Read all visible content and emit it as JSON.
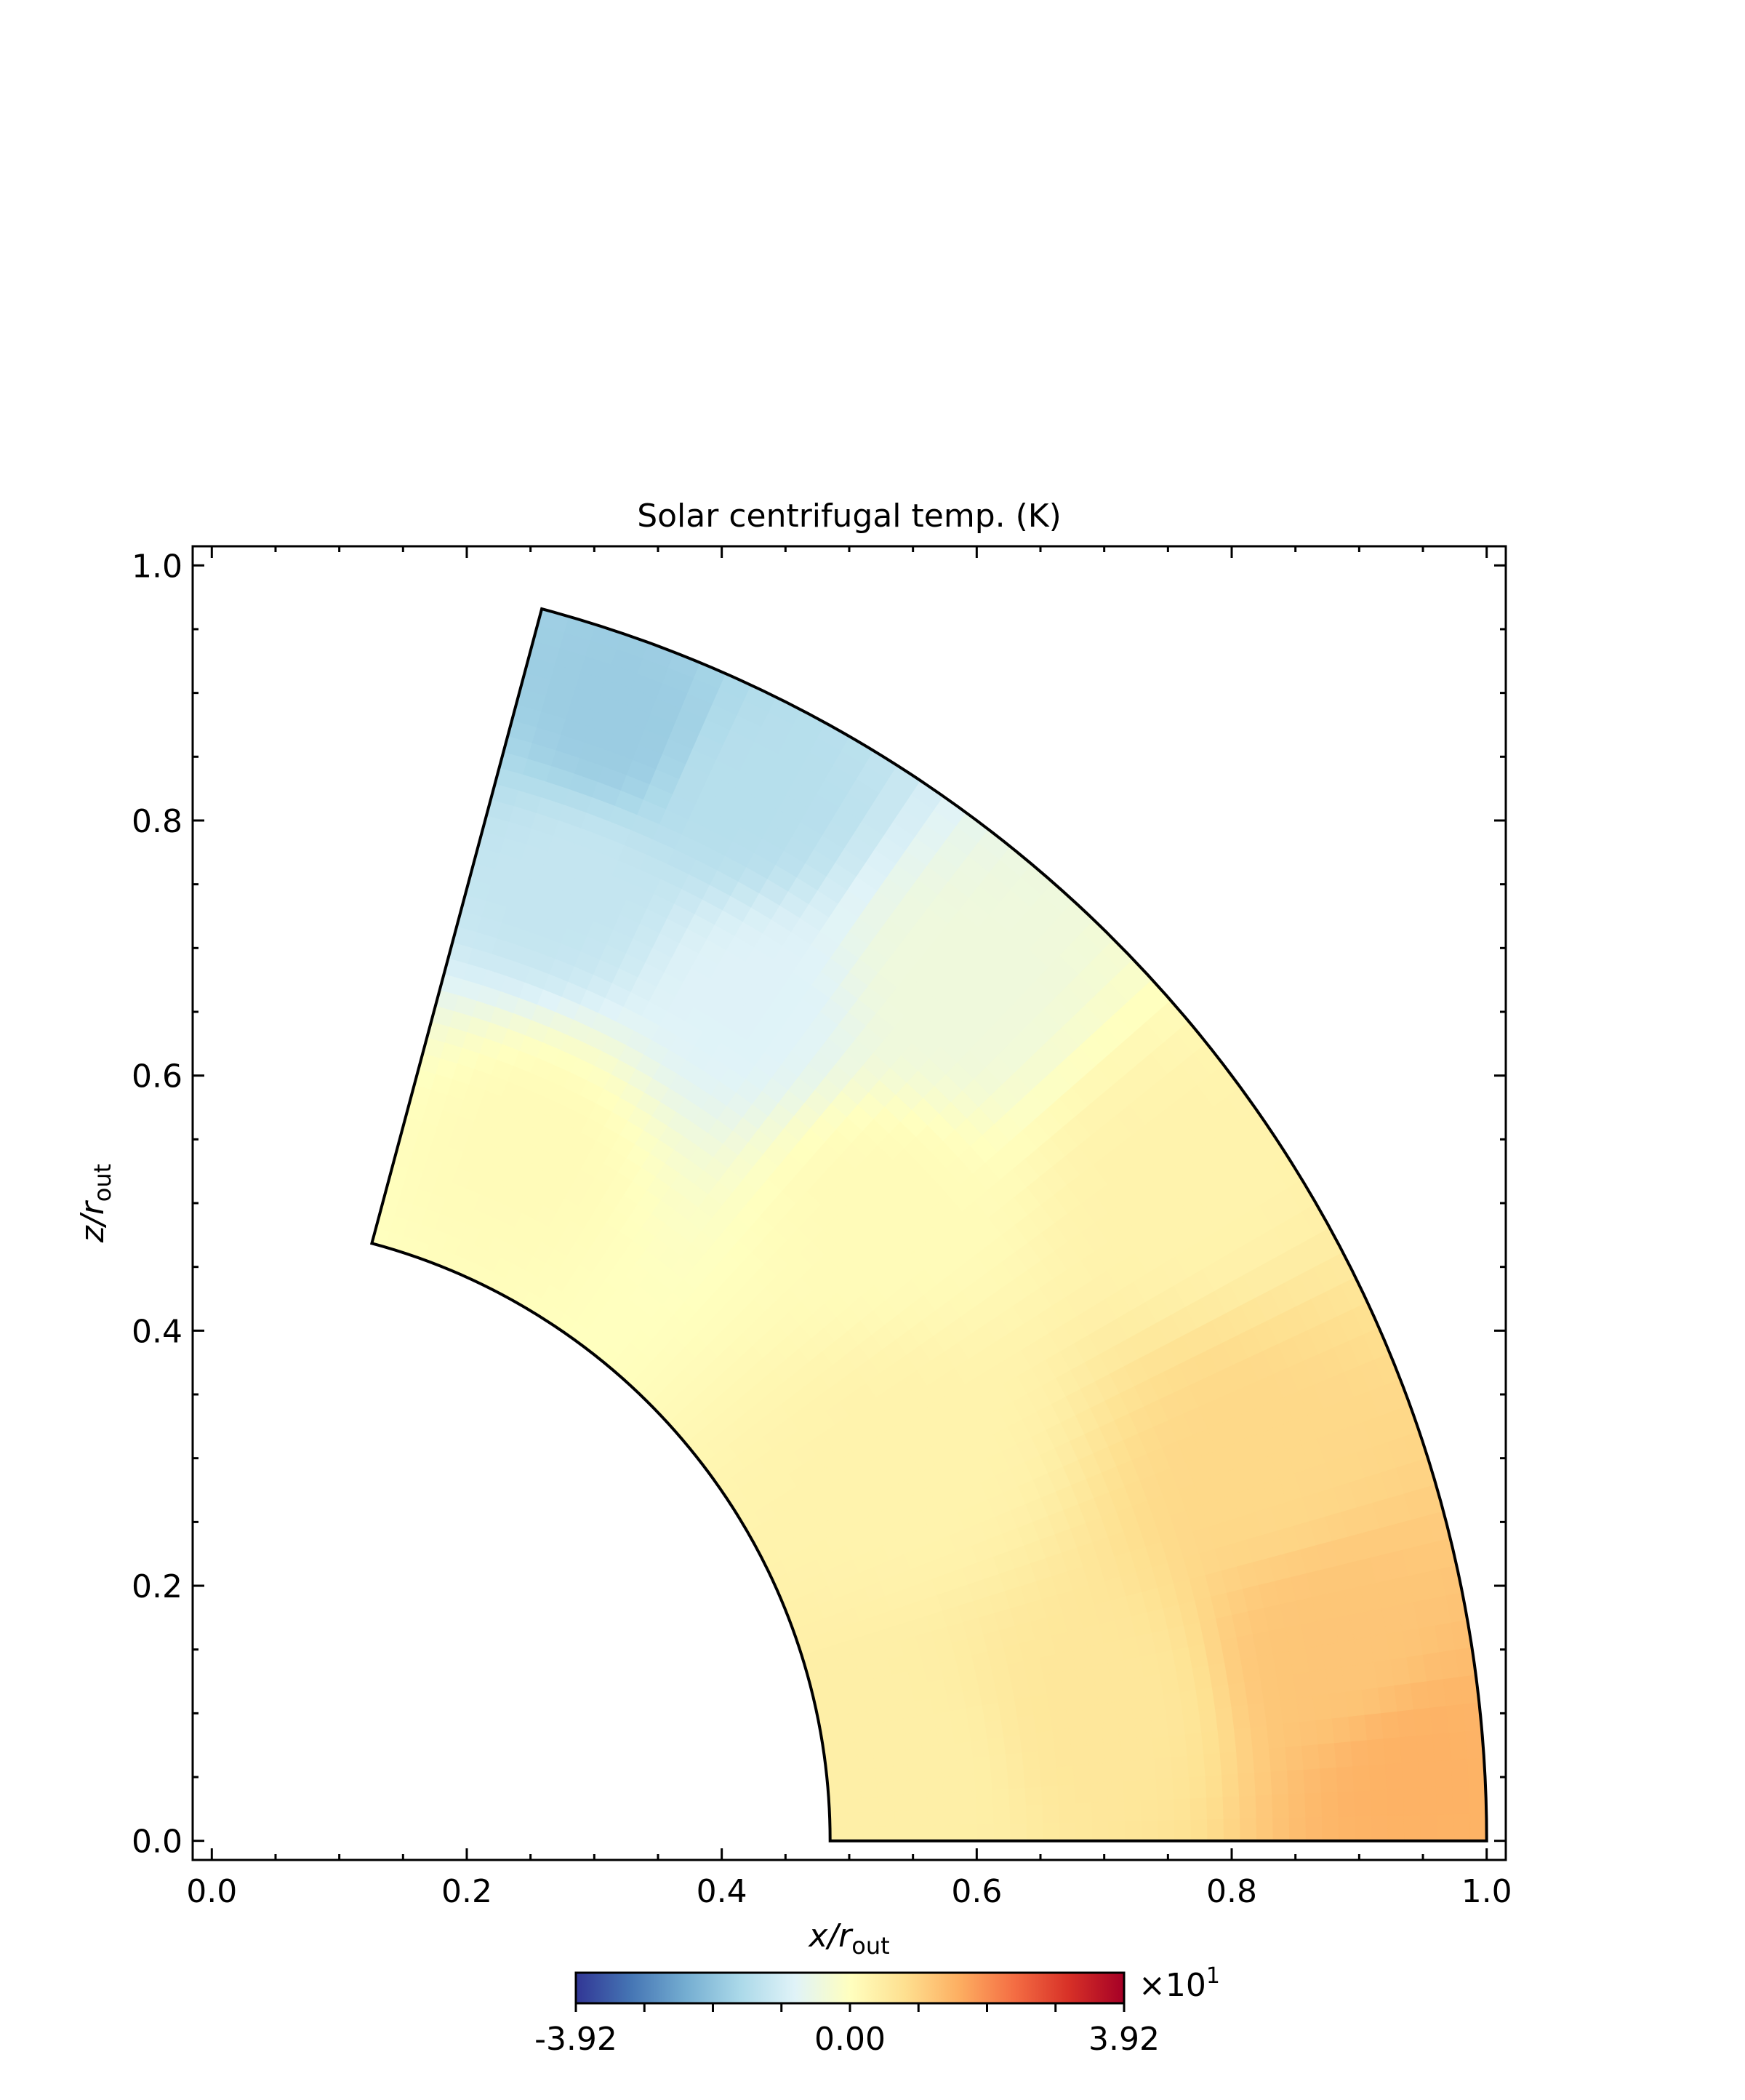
{
  "chart_data": {
    "type": "heatmap",
    "title": "Solar centrifugal temp. (K)",
    "xlabel": {
      "main": "x/r",
      "sub": "out"
    },
    "ylabel": {
      "main": "z/r",
      "sub": "out"
    },
    "xlim": [
      -0.015,
      1.015
    ],
    "ylim": [
      -0.015,
      1.015
    ],
    "xticks": [
      {
        "value": 0.0,
        "label": "0.0"
      },
      {
        "value": 0.2,
        "label": "0.2"
      },
      {
        "value": 0.4,
        "label": "0.4"
      },
      {
        "value": 0.6,
        "label": "0.6"
      },
      {
        "value": 0.8,
        "label": "0.8"
      },
      {
        "value": 1.0,
        "label": "1.0"
      }
    ],
    "yticks": [
      {
        "value": 0.0,
        "label": "0.0"
      },
      {
        "value": 0.2,
        "label": "0.2"
      },
      {
        "value": 0.4,
        "label": "0.4"
      },
      {
        "value": 0.6,
        "label": "0.6"
      },
      {
        "value": 0.8,
        "label": "0.8"
      },
      {
        "value": 1.0,
        "label": "1.0"
      }
    ],
    "domain": {
      "shape": "spherical shell sector",
      "r_inner": 0.485,
      "r_outer": 1.0,
      "theta_deg": [
        0,
        75
      ]
    },
    "field_samples": [
      {
        "x": 0.32,
        "z": 0.88,
        "T": -18
      },
      {
        "x": 0.42,
        "z": 0.82,
        "T": -14
      },
      {
        "x": 0.28,
        "z": 0.75,
        "T": -12
      },
      {
        "x": 0.42,
        "z": 0.66,
        "T": -8
      },
      {
        "x": 0.58,
        "z": 0.67,
        "T": -4
      },
      {
        "x": 0.25,
        "z": 0.55,
        "T": 1
      },
      {
        "x": 0.52,
        "z": 0.5,
        "T": 1
      },
      {
        "x": 0.75,
        "z": 0.52,
        "T": 3
      },
      {
        "x": 0.55,
        "z": 0.3,
        "T": 3
      },
      {
        "x": 0.55,
        "z": 0.05,
        "T": 4
      },
      {
        "x": 0.7,
        "z": 0.1,
        "T": 6
      },
      {
        "x": 0.82,
        "z": 0.3,
        "T": 9
      },
      {
        "x": 0.88,
        "z": 0.15,
        "T": 12
      },
      {
        "x": 0.95,
        "z": 0.05,
        "T": 15
      }
    ],
    "colorbar": {
      "colormap": "RdYlBu_r",
      "vmin": -3.92,
      "vmax": 3.92,
      "tick_labels": [
        "-3.92",
        "0.00",
        "3.92"
      ],
      "multiplier": {
        "base": "×10",
        "exponent": "1"
      },
      "colors": [
        "#313695",
        "#4575b4",
        "#74add1",
        "#abd9e9",
        "#e0f3f8",
        "#ffffbf",
        "#fee090",
        "#fdae61",
        "#f46d43",
        "#d73027",
        "#a50026"
      ]
    },
    "grid": false,
    "legend": "none"
  }
}
